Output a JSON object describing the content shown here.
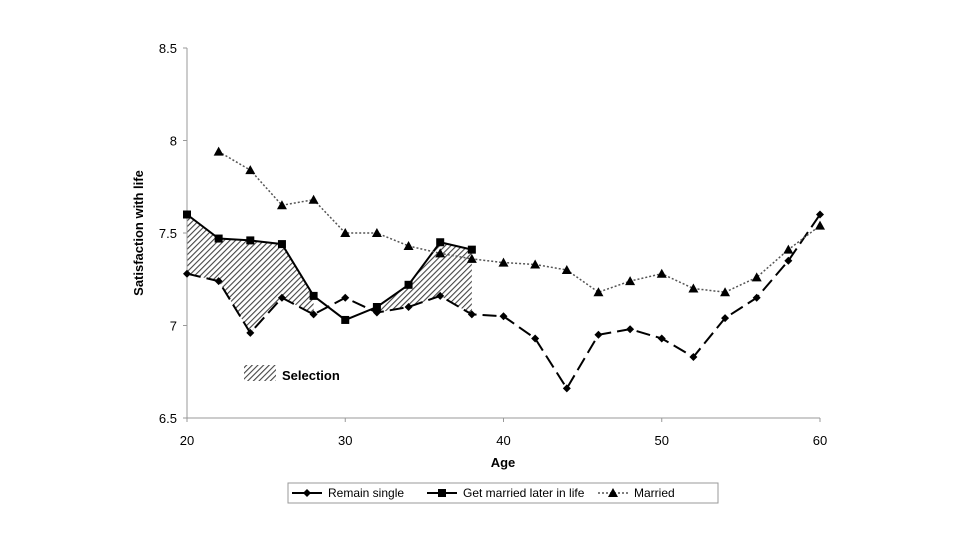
{
  "chart_data": {
    "type": "line",
    "title": "",
    "xlabel": "Age",
    "ylabel": "Satisfaction with life",
    "xlim": [
      20,
      60
    ],
    "ylim": [
      6.5,
      8.5
    ],
    "x_ticks": [
      "20",
      "30",
      "40",
      "50",
      "60"
    ],
    "y_ticks": [
      "6.5",
      "7",
      "7.5",
      "8",
      "8.5"
    ],
    "grid": false,
    "legend_position": "bottom",
    "series": [
      {
        "name": "Remain single",
        "marker": "diamond",
        "line_style": "dashed",
        "color": "#000000",
        "x": [
          20,
          22,
          24,
          26,
          28,
          30,
          32,
          34,
          36,
          38,
          40,
          42,
          44,
          46,
          48,
          50,
          52,
          54,
          56,
          58,
          60
        ],
        "values": [
          7.28,
          7.24,
          6.96,
          7.15,
          7.06,
          7.15,
          7.07,
          7.1,
          7.16,
          7.06,
          7.05,
          6.93,
          6.66,
          6.95,
          6.98,
          6.93,
          6.83,
          7.04,
          7.15,
          7.35,
          7.6
        ]
      },
      {
        "name": "Get married later in life",
        "marker": "square",
        "line_style": "solid",
        "color": "#000000",
        "x": [
          20,
          22,
          24,
          26,
          28,
          30,
          32,
          34,
          36,
          38
        ],
        "values": [
          7.6,
          7.47,
          7.46,
          7.44,
          7.16,
          7.03,
          7.1,
          7.22,
          7.45,
          7.41
        ]
      },
      {
        "name": "Married",
        "marker": "triangle",
        "line_style": "dotted",
        "color": "#555555",
        "x": [
          22,
          24,
          26,
          28,
          30,
          32,
          34,
          36,
          38,
          40,
          42,
          44,
          46,
          48,
          50,
          52,
          54,
          56,
          58,
          60
        ],
        "values": [
          7.94,
          7.84,
          7.65,
          7.68,
          7.5,
          7.5,
          7.43,
          7.39,
          7.36,
          7.34,
          7.33,
          7.3,
          7.18,
          7.24,
          7.28,
          7.2,
          7.18,
          7.26,
          7.41,
          7.54
        ]
      }
    ],
    "selection_regions": [
      {
        "x_from": 20,
        "x_to": 28,
        "label": "Selection"
      },
      {
        "x_from": 32,
        "x_to": 38,
        "label": "Selection"
      }
    ],
    "annotations": [
      {
        "text": "Selection"
      }
    ]
  }
}
